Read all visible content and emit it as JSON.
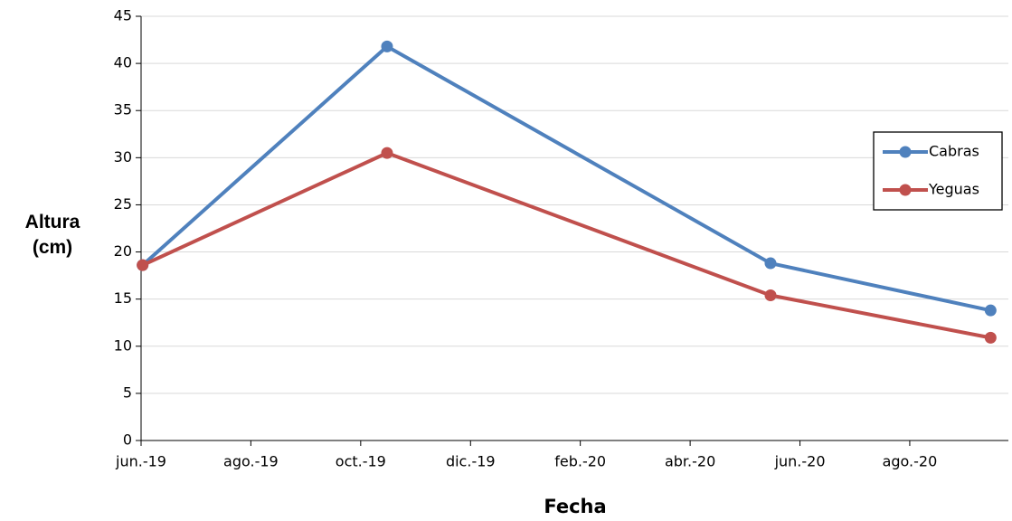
{
  "chart_data": {
    "type": "line",
    "x_label": "Fecha",
    "y_label": "Altura (cm)",
    "x": [
      2019.419,
      2019.79,
      2020.372,
      2020.706
    ],
    "series": [
      {
        "name": "Cabras",
        "color": "#4f81bd",
        "values": [
          18.6,
          41.8,
          18.8,
          13.8
        ]
      },
      {
        "name": "Yeguas",
        "color": "#c0504d",
        "values": [
          18.6,
          30.5,
          15.4,
          10.9
        ]
      }
    ],
    "xlim": [
      2019.4167,
      2020.733
    ],
    "xticks": [
      {
        "value": 2019.4167,
        "label": "jun.-19"
      },
      {
        "value": 2019.5833,
        "label": "ago.-19"
      },
      {
        "value": 2019.75,
        "label": "oct.-19"
      },
      {
        "value": 2019.9167,
        "label": "dic.-19"
      },
      {
        "value": 2020.0833,
        "label": "feb.-20"
      },
      {
        "value": 2020.25,
        "label": "abr.-20"
      },
      {
        "value": 2020.4167,
        "label": "jun.-20"
      },
      {
        "value": 2020.5833,
        "label": "ago.-20"
      }
    ],
    "ylim": [
      0,
      45
    ],
    "yticks": [
      0,
      5,
      10,
      15,
      20,
      25,
      30,
      35,
      40,
      45
    ],
    "grid": true,
    "legend": "right"
  }
}
